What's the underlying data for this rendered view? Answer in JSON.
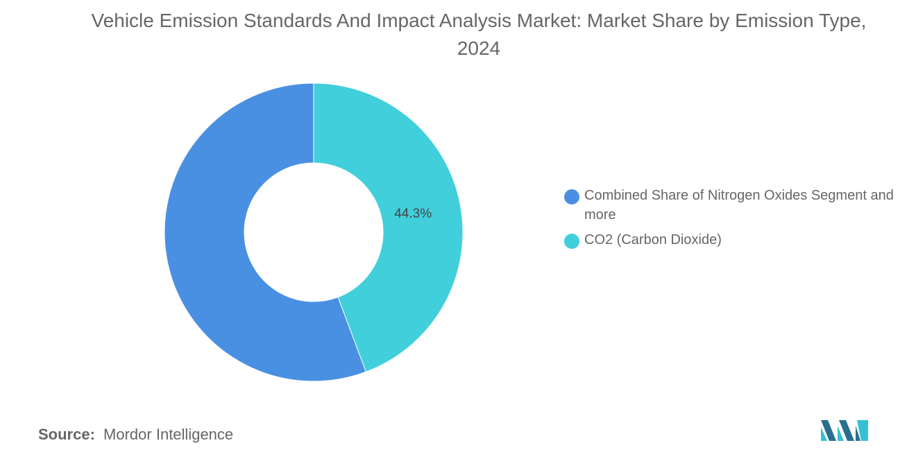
{
  "title": "Vehicle Emission Standards And Impact Analysis Market: Market Share by Emission Type, 2024",
  "source": {
    "label": "Source:",
    "value": "Mordor Intelligence"
  },
  "logo_icon": "mordor-intelligence-logo-icon",
  "colors": {
    "combined": "#4a90e2",
    "co2": "#41cfdb",
    "text": "#666666"
  },
  "chart_data": {
    "type": "pie",
    "variant": "donut",
    "title": "Vehicle Emission Standards And Impact Analysis Market: Market Share by Emission Type, 2024",
    "legend_position": "right",
    "slices": [
      {
        "label": "Combined Share of Nitrogen Oxides Segment and more",
        "value": 55.7,
        "color": "#4a90e2",
        "data_label": ""
      },
      {
        "label": "CO2 (Carbon Dioxide)",
        "value": 44.3,
        "color": "#41cfdb",
        "data_label": "44.3%"
      }
    ]
  }
}
